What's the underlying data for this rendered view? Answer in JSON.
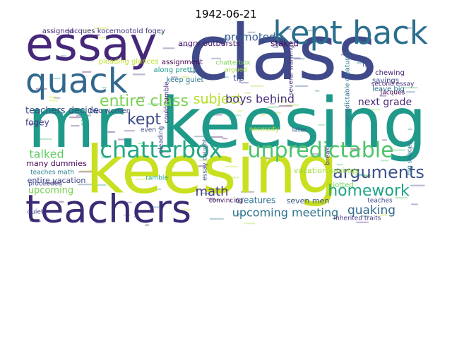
{
  "chart_data": {
    "type": "wordcloud",
    "title": "1942-06-21",
    "palette": [
      "#440154",
      "#46327e",
      "#365c8d",
      "#277f8e",
      "#1fa187",
      "#4ac16d",
      "#a0da39",
      "#c8e020"
    ],
    "words": [
      {
        "text": "class",
        "weight": 1.0,
        "color": "#404a8a",
        "vertical": false
      },
      {
        "text": "mr. keesing",
        "weight": 0.92,
        "color": "#1f9a8a",
        "vertical": false
      },
      {
        "text": "keesing",
        "weight": 0.86,
        "color": "#c8e020",
        "vertical": false
      },
      {
        "text": "essay",
        "weight": 0.6,
        "color": "#46277a",
        "vertical": false
      },
      {
        "text": "teachers",
        "weight": 0.5,
        "color": "#3b2a74",
        "vertical": false
      },
      {
        "text": "quack",
        "weight": 0.44,
        "color": "#31688e",
        "vertical": false
      },
      {
        "text": "kept back",
        "weight": 0.42,
        "color": "#2b6f8e",
        "vertical": false
      },
      {
        "text": "chatterbox",
        "weight": 0.3,
        "color": "#22a784",
        "vertical": false
      },
      {
        "text": "unpredictable",
        "weight": 0.28,
        "color": "#4ec36b",
        "vertical": false
      },
      {
        "text": "arguments",
        "weight": 0.22,
        "color": "#3b528b",
        "vertical": false
      },
      {
        "text": "entire class",
        "weight": 0.2,
        "color": "#7ad151",
        "vertical": false
      },
      {
        "text": "homework",
        "weight": 0.2,
        "color": "#20a386",
        "vertical": false
      },
      {
        "text": "kept",
        "weight": 0.2,
        "color": "#3e4a89",
        "vertical": false
      },
      {
        "text": "subject",
        "weight": 0.18,
        "color": "#b5de2b",
        "vertical": false
      },
      {
        "text": "math",
        "weight": 0.17,
        "color": "#443983",
        "vertical": false
      },
      {
        "text": "quaking",
        "weight": 0.16,
        "color": "#31688e",
        "vertical": false
      },
      {
        "text": "upcoming meeting",
        "weight": 0.15,
        "color": "#2c728e",
        "vertical": false
      },
      {
        "text": "talked",
        "weight": 0.15,
        "color": "#5ec962",
        "vertical": false
      },
      {
        "text": "boys behind",
        "weight": 0.15,
        "color": "#472d7b",
        "vertical": false
      },
      {
        "text": "promoted",
        "weight": 0.14,
        "color": "#365c8d",
        "vertical": false
      },
      {
        "text": "next grade",
        "weight": 0.13,
        "color": "#482475",
        "vertical": false
      },
      {
        "text": "teachers decide",
        "weight": 0.12,
        "color": "#3b528b",
        "vertical": false
      },
      {
        "text": "upcoming",
        "weight": 0.12,
        "color": "#7ad151",
        "vertical": false
      },
      {
        "text": "fogey",
        "weight": 0.11,
        "color": "#443983",
        "vertical": false
      },
      {
        "text": "staked",
        "weight": 0.11,
        "color": "#471063",
        "vertical": false
      },
      {
        "text": "creatures",
        "weight": 0.11,
        "color": "#2c728e",
        "vertical": false
      },
      {
        "text": "many dummies",
        "weight": 0.1,
        "color": "#440154",
        "vertical": false
      },
      {
        "text": "vacation savings",
        "weight": 0.1,
        "color": "#a0da39",
        "vertical": false
      },
      {
        "text": "seven men",
        "weight": 0.1,
        "color": "#3b528b",
        "vertical": false
      },
      {
        "text": "entire vacation",
        "weight": 0.1,
        "color": "#404688",
        "vertical": false
      },
      {
        "text": "assigned",
        "weight": 0.09,
        "color": "#482878",
        "vertical": false
      },
      {
        "text": "jacques kocernootold fogey",
        "weight": 0.09,
        "color": "#46327e",
        "vertical": false
      },
      {
        "text": "angry outbursts",
        "weight": 0.1,
        "color": "#48186a",
        "vertical": false
      },
      {
        "text": "pleading glances",
        "weight": 0.09,
        "color": "#bddf26",
        "vertical": false
      },
      {
        "text": "along pretty",
        "weight": 0.09,
        "color": "#1f988b",
        "vertical": false
      },
      {
        "text": "assignment",
        "weight": 0.09,
        "color": "#440154",
        "vertical": false
      },
      {
        "text": "keep quiet",
        "weight": 0.09,
        "color": "#2a788e",
        "vertical": false
      },
      {
        "text": "chatterbox",
        "weight": 0.08,
        "color": "#7ad151",
        "vertical": false
      },
      {
        "text": "chewing",
        "weight": 0.09,
        "color": "#482475",
        "vertical": false
      },
      {
        "text": "savings",
        "weight": 0.09,
        "color": "#3e4a89",
        "vertical": false
      },
      {
        "text": "leave big",
        "weight": 0.09,
        "color": "#2c728e",
        "vertical": false
      },
      {
        "text": "jacques",
        "weight": 0.08,
        "color": "#440154",
        "vertical": false
      },
      {
        "text": "tip",
        "weight": 0.11,
        "color": "#3b528b",
        "vertical": false
      },
      {
        "text": "two women",
        "weight": 0.09,
        "color": "#414487",
        "vertical": false
      },
      {
        "text": "teaches math",
        "weight": 0.08,
        "color": "#277f8e",
        "vertical": false
      },
      {
        "text": "jotted",
        "weight": 0.09,
        "color": "#6ece58",
        "vertical": false
      },
      {
        "text": "teaches",
        "weight": 0.08,
        "color": "#3e4a89",
        "vertical": false
      },
      {
        "text": "inherited traits",
        "weight": 0.08,
        "color": "#46327e",
        "vertical": false
      },
      {
        "text": "quiet",
        "weight": 0.08,
        "color": "#414487",
        "vertical": false
      },
      {
        "text": "later",
        "weight": 0.08,
        "color": "#3b528b",
        "vertical": false
      },
      {
        "text": "necessity",
        "weight": 0.07,
        "color": "#b5de2b",
        "vertical": false
      },
      {
        "text": "ramble",
        "weight": 0.07,
        "color": "#1fa187",
        "vertical": false
      },
      {
        "text": "even",
        "weight": 0.07,
        "color": "#3e4a89",
        "vertical": false
      },
      {
        "text": "proceeded",
        "weight": 0.06,
        "color": "#3e4a89",
        "vertical": false
      },
      {
        "text": "convincing",
        "weight": 0.06,
        "color": "#440154",
        "vertical": false
      },
      {
        "text": "argued",
        "weight": 0.06,
        "color": "#a0da39",
        "vertical": false
      },
      {
        "text": "not.",
        "weight": 0.08,
        "color": "#3b528b",
        "vertical": false
      },
      {
        "text": "second essay",
        "weight": 0.06,
        "color": "#482878",
        "vertical": false
      },
      {
        "text": "several warnings",
        "weight": 0.08,
        "color": "#46327e",
        "vertical": true
      },
      {
        "text": "unpredictable creatures",
        "weight": 0.07,
        "color": "#2c728e",
        "vertical": true
      },
      {
        "text": "could ramble",
        "weight": 0.08,
        "color": "#482878",
        "vertical": true
      },
      {
        "text": "pleading",
        "weight": 0.07,
        "color": "#3e4a89",
        "vertical": true
      },
      {
        "text": "essay caught",
        "weight": 0.07,
        "color": "#3b528b",
        "vertical": true
      },
      {
        "text": "big spaces",
        "weight": 0.07,
        "color": "#2c728e",
        "vertical": true
      },
      {
        "text": "could",
        "weight": 0.07,
        "color": "#1fa187",
        "vertical": true
      },
      {
        "text": "break",
        "weight": 0.06,
        "color": "#46327e",
        "vertical": true
      }
    ]
  }
}
